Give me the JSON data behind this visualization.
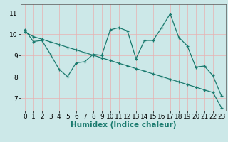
{
  "xlabel": "Humidex (Indice chaleur)",
  "bg_color": "#cce8e8",
  "plot_bg_color": "#cce8e8",
  "line_color": "#1a7a6e",
  "grid_color": "#e8b0b0",
  "x_ticks": [
    0,
    1,
    2,
    3,
    4,
    5,
    6,
    7,
    8,
    9,
    10,
    11,
    12,
    13,
    14,
    15,
    16,
    17,
    18,
    19,
    20,
    21,
    22,
    23
  ],
  "y_ticks": [
    7,
    8,
    9,
    10,
    11
  ],
  "ylim": [
    6.4,
    11.4
  ],
  "xlim": [
    -0.5,
    23.5
  ],
  "line1_x": [
    0,
    1,
    2,
    3,
    4,
    5,
    6,
    7,
    8,
    9,
    10,
    11,
    12,
    13,
    14,
    15,
    16,
    17,
    18,
    19,
    20,
    21,
    22,
    23
  ],
  "line1_y": [
    10.2,
    9.65,
    9.7,
    9.05,
    8.35,
    8.0,
    8.65,
    8.7,
    9.05,
    9.0,
    10.2,
    10.3,
    10.15,
    8.85,
    9.7,
    9.7,
    10.3,
    10.95,
    9.85,
    9.45,
    8.45,
    8.5,
    8.05,
    7.1
  ],
  "line2_x": [
    0,
    1,
    2,
    3,
    4,
    5,
    6,
    7,
    8,
    9,
    10,
    11,
    12,
    13,
    14,
    15,
    16,
    17,
    18,
    19,
    20,
    21,
    22,
    23
  ],
  "line2_y": [
    10.1,
    9.88,
    9.76,
    9.63,
    9.51,
    9.38,
    9.26,
    9.13,
    9.01,
    8.88,
    8.76,
    8.63,
    8.51,
    8.38,
    8.26,
    8.13,
    8.01,
    7.88,
    7.76,
    7.63,
    7.51,
    7.38,
    7.26,
    6.55
  ],
  "tick_fontsize": 6.5,
  "label_fontsize": 7.5,
  "linewidth": 0.9,
  "markersize": 3.5,
  "markeredgewidth": 0.9
}
